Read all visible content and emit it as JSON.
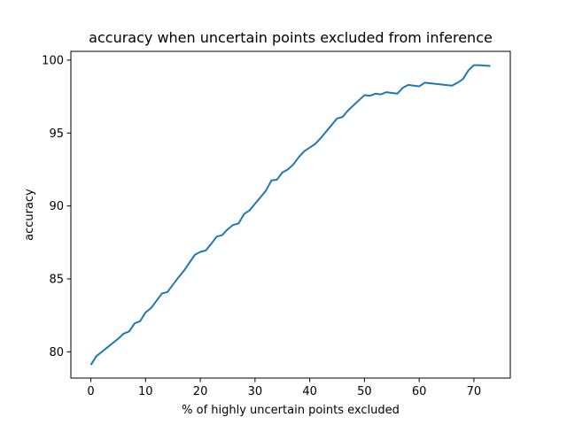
{
  "chart_data": {
    "type": "line",
    "title": "accuracy when uncertain points excluded from inference",
    "xlabel": "% of highly uncertain points excluded",
    "ylabel": "accuracy",
    "xlim": [
      -3.65,
      76.65
    ],
    "ylim": [
      78.2,
      100.6
    ],
    "xticks": [
      0,
      10,
      20,
      30,
      40,
      50,
      60,
      70
    ],
    "yticks": [
      80,
      85,
      90,
      95,
      100
    ],
    "grid": false,
    "line_color": "#1f77b4",
    "series": [
      {
        "x": [
          0,
          1,
          2,
          3,
          4,
          5,
          6,
          7,
          8,
          9,
          10,
          11,
          12,
          13,
          14,
          15,
          16,
          17,
          18,
          19,
          20,
          21,
          22,
          23,
          24,
          25,
          26,
          27,
          28,
          29,
          30,
          31,
          32,
          33,
          34,
          35,
          36,
          37,
          38,
          39,
          40,
          41,
          42,
          43,
          44,
          45,
          46,
          47,
          48,
          49,
          50,
          51,
          52,
          53,
          54,
          55,
          56,
          57,
          58,
          59,
          60,
          61,
          66,
          67,
          68,
          69,
          70,
          71,
          73
        ],
        "values": [
          79.1,
          79.7,
          80.0,
          80.3,
          80.6,
          80.9,
          81.25,
          81.4,
          81.95,
          82.1,
          82.7,
          83.0,
          83.5,
          84.0,
          84.1,
          84.6,
          85.1,
          85.55,
          86.1,
          86.65,
          86.85,
          86.95,
          87.4,
          87.9,
          88.0,
          88.4,
          88.7,
          88.8,
          89.45,
          89.7,
          90.15,
          90.6,
          91.05,
          91.75,
          91.8,
          92.3,
          92.5,
          92.85,
          93.35,
          93.75,
          94.0,
          94.25,
          94.65,
          95.1,
          95.55,
          96.0,
          96.1,
          96.55,
          96.9,
          97.25,
          97.6,
          97.55,
          97.7,
          97.65,
          97.8,
          97.75,
          97.7,
          98.1,
          98.3,
          98.25,
          98.2,
          98.45,
          98.25,
          98.45,
          98.7,
          99.3,
          99.65,
          99.65,
          99.6
        ]
      }
    ]
  }
}
